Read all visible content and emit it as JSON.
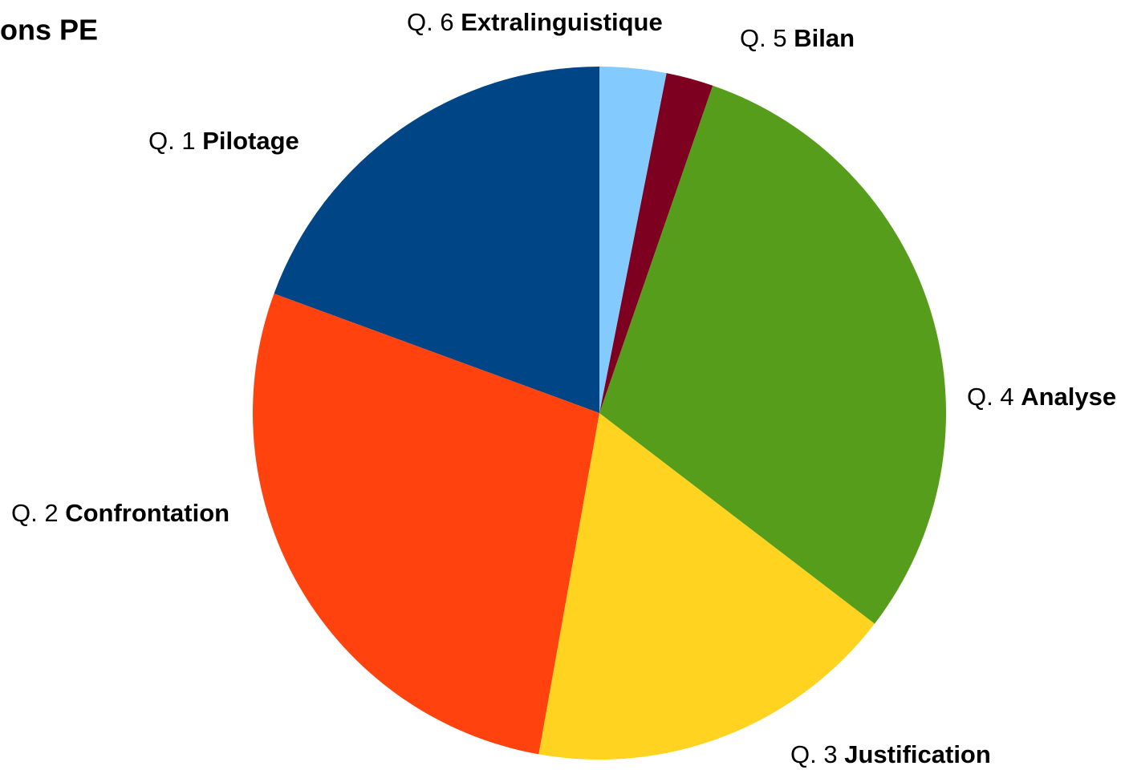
{
  "chart_data": {
    "type": "pie",
    "title": "ons PE",
    "category_prefixes": [
      "Q. 1",
      "Q. 2",
      "Q. 3",
      "Q. 4",
      "Q. 5",
      "Q. 6"
    ],
    "categories": [
      "Pilotage",
      "Confrontation",
      "Justification",
      "Analyse",
      "Bilan",
      "Extralinguistique"
    ],
    "values": [
      19.4,
      27.8,
      17.4,
      30.1,
      2.2,
      3.1
    ],
    "colors": [
      "#004586",
      "#ff420e",
      "#ffd320",
      "#579d1c",
      "#7e0021",
      "#83caff"
    ]
  }
}
